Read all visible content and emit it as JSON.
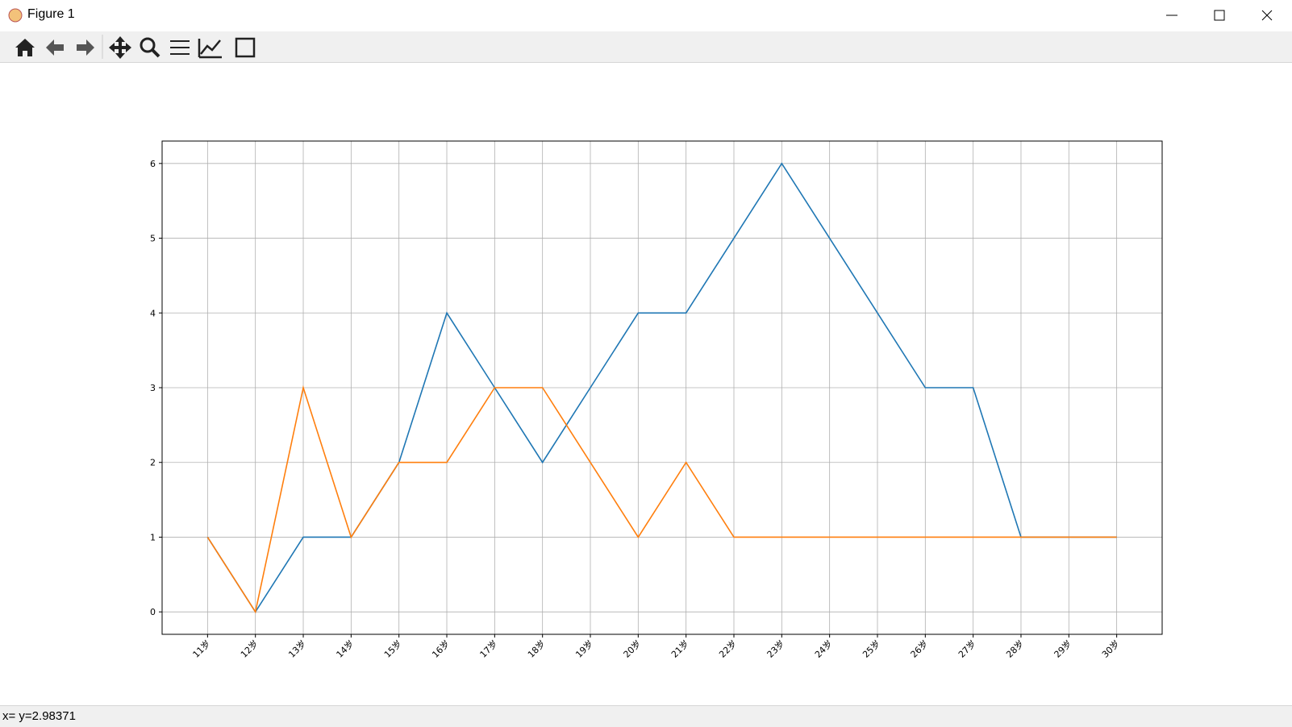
{
  "window": {
    "title": "Figure 1",
    "status": "x= y=2.98371"
  },
  "chart_data": {
    "type": "line",
    "categories": [
      "11岁",
      "12岁",
      "13岁",
      "14岁",
      "15岁",
      "16岁",
      "17岁",
      "18岁",
      "19岁",
      "20岁",
      "21岁",
      "22岁",
      "23岁",
      "24岁",
      "25岁",
      "26岁",
      "27岁",
      "28岁",
      "29岁",
      "30岁"
    ],
    "series": [
      {
        "color": "#1f77b4",
        "values": [
          1,
          0,
          1,
          1,
          2,
          4,
          3,
          2,
          3,
          4,
          4,
          5,
          6,
          5,
          4,
          3,
          3,
          1,
          1,
          1
        ]
      },
      {
        "color": "#ff7f0e",
        "values": [
          1,
          0,
          3,
          1,
          2,
          2,
          3,
          3,
          2,
          1,
          2,
          1,
          1,
          1,
          1,
          1,
          1,
          1,
          1,
          1
        ]
      }
    ],
    "ylim": [
      -0.3,
      6.3
    ],
    "yticks": [
      0,
      1,
      2,
      3,
      4,
      5,
      6
    ],
    "grid": true
  }
}
